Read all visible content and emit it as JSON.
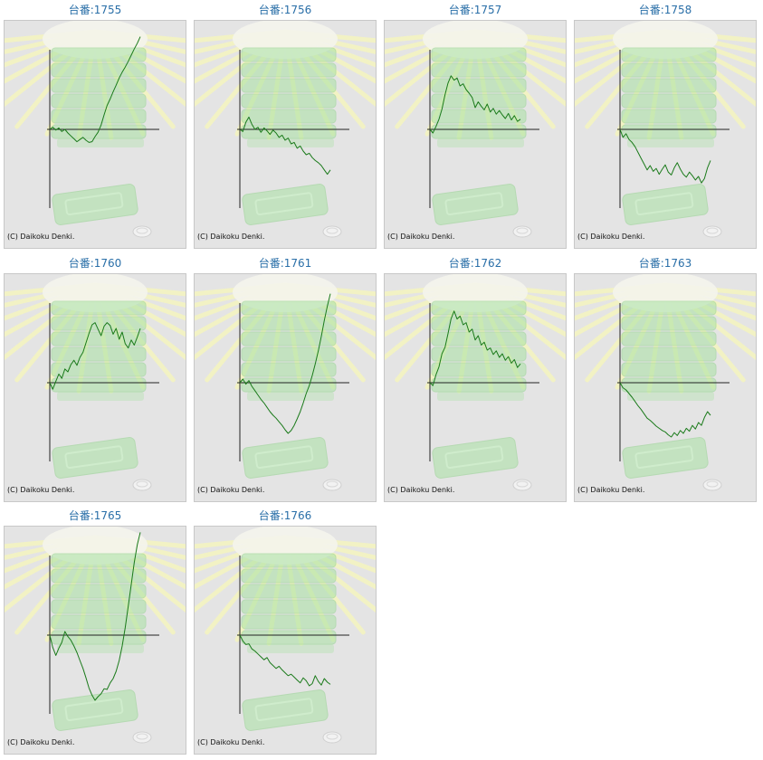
{
  "colors": {
    "title": "#2a6fa8",
    "line": "#1a7a1a",
    "axis": "#222222",
    "panel_bg": "#e4e4e4",
    "panel_border": "#c8c8c8",
    "art_green": "#a9e2a4",
    "art_rays": "#f2f2c4"
  },
  "copyright": "(C) Daikoku Denki.",
  "chart_data": [
    {
      "type": "line",
      "title": "台番:1755",
      "x": [
        0,
        1,
        2,
        3,
        4,
        5,
        6,
        7,
        8,
        9,
        10,
        11,
        12,
        13,
        14,
        15,
        16,
        17,
        18,
        19,
        20,
        21,
        22,
        23,
        24,
        25,
        26,
        27,
        28,
        29,
        30
      ],
      "values": [
        0,
        6,
        -2,
        4,
        -6,
        0,
        -10,
        -18,
        -26,
        -34,
        -28,
        -22,
        -30,
        -36,
        -34,
        -20,
        -8,
        12,
        40,
        66,
        84,
        104,
        122,
        142,
        158,
        172,
        188,
        205,
        222,
        238,
        256
      ]
    },
    {
      "type": "line",
      "title": "台番:1756",
      "x": [
        0,
        1,
        2,
        3,
        4,
        5,
        6,
        7,
        8,
        9,
        10,
        11,
        12,
        13,
        14,
        15,
        16,
        17,
        18,
        19,
        20,
        21,
        22,
        23,
        24,
        25,
        26,
        27,
        28,
        29,
        30
      ],
      "values": [
        0,
        -6,
        20,
        34,
        14,
        0,
        6,
        -8,
        4,
        -4,
        -14,
        -2,
        -10,
        -22,
        -16,
        -30,
        -24,
        -40,
        -36,
        -52,
        -46,
        -60,
        -70,
        -66,
        -78,
        -86,
        -92,
        -100,
        -112,
        -124,
        -112
      ]
    },
    {
      "type": "line",
      "title": "台番:1757",
      "x": [
        0,
        1,
        2,
        3,
        4,
        5,
        6,
        7,
        8,
        9,
        10,
        11,
        12,
        13,
        14,
        15,
        16,
        17,
        18,
        19,
        20,
        21,
        22,
        23,
        24,
        25,
        26,
        27,
        28,
        29,
        30
      ],
      "values": [
        0,
        -10,
        8,
        28,
        56,
        96,
        128,
        148,
        136,
        142,
        120,
        126,
        110,
        100,
        88,
        60,
        76,
        64,
        54,
        70,
        48,
        58,
        42,
        52,
        40,
        30,
        44,
        26,
        38,
        22,
        28
      ]
    },
    {
      "type": "line",
      "title": "台番:1758",
      "x": [
        0,
        1,
        2,
        3,
        4,
        5,
        6,
        7,
        8,
        9,
        10,
        11,
        12,
        13,
        14,
        15,
        16,
        17,
        18,
        19,
        20,
        21,
        22,
        23,
        24,
        25,
        26,
        27,
        28,
        29,
        30
      ],
      "values": [
        0,
        -22,
        -12,
        -28,
        -36,
        -48,
        -64,
        -80,
        -96,
        -112,
        -100,
        -116,
        -108,
        -124,
        -110,
        -98,
        -118,
        -126,
        -106,
        -92,
        -110,
        -124,
        -132,
        -118,
        -128,
        -140,
        -130,
        -148,
        -136,
        -106,
        -86
      ]
    },
    {
      "type": "line",
      "title": "台番:1760",
      "x": [
        0,
        1,
        2,
        3,
        4,
        5,
        6,
        7,
        8,
        9,
        10,
        11,
        12,
        13,
        14,
        15,
        16,
        17,
        18,
        19,
        20,
        21,
        22,
        23,
        24,
        25,
        26,
        27,
        28,
        29,
        30
      ],
      "values": [
        0,
        -18,
        4,
        24,
        12,
        38,
        30,
        50,
        62,
        48,
        70,
        84,
        110,
        136,
        160,
        166,
        148,
        130,
        156,
        166,
        158,
        134,
        150,
        120,
        140,
        108,
        96,
        118,
        104,
        126,
        150
      ]
    },
    {
      "type": "line",
      "title": "台番:1761",
      "x": [
        0,
        1,
        2,
        3,
        4,
        5,
        6,
        7,
        8,
        9,
        10,
        11,
        12,
        13,
        14,
        15,
        16,
        17,
        18,
        19,
        20,
        21,
        22,
        23,
        24,
        25,
        26,
        27,
        28,
        29,
        30
      ],
      "values": [
        0,
        10,
        -4,
        6,
        -10,
        -22,
        -34,
        -46,
        -56,
        -68,
        -80,
        -90,
        -98,
        -108,
        -118,
        -130,
        -140,
        -132,
        -118,
        -100,
        -80,
        -56,
        -30,
        -8,
        20,
        52,
        88,
        128,
        172,
        212,
        246
      ]
    },
    {
      "type": "line",
      "title": "台番:1762",
      "x": [
        0,
        1,
        2,
        3,
        4,
        5,
        6,
        7,
        8,
        9,
        10,
        11,
        12,
        13,
        14,
        15,
        16,
        17,
        18,
        19,
        20,
        21,
        22,
        23,
        24,
        25,
        26,
        27,
        28,
        29,
        30
      ],
      "values": [
        0,
        -8,
        22,
        44,
        80,
        98,
        136,
        176,
        198,
        176,
        184,
        160,
        166,
        140,
        148,
        118,
        130,
        104,
        112,
        90,
        96,
        78,
        88,
        70,
        80,
        62,
        72,
        54,
        64,
        42,
        52
      ]
    },
    {
      "type": "line",
      "title": "台番:1763",
      "x": [
        0,
        1,
        2,
        3,
        4,
        5,
        6,
        7,
        8,
        9,
        10,
        11,
        12,
        13,
        14,
        15,
        16,
        17,
        18,
        19,
        20,
        21,
        22,
        23,
        24,
        25,
        26,
        27,
        28,
        29,
        30
      ],
      "values": [
        0,
        -14,
        -20,
        -30,
        -40,
        -52,
        -64,
        -74,
        -86,
        -98,
        -104,
        -112,
        -120,
        -126,
        -132,
        -136,
        -144,
        -150,
        -138,
        -146,
        -132,
        -140,
        -126,
        -134,
        -118,
        -128,
        -110,
        -118,
        -96,
        -80,
        -90
      ]
    },
    {
      "type": "line",
      "title": "台番:1765",
      "x": [
        0,
        1,
        2,
        3,
        4,
        5,
        6,
        7,
        8,
        9,
        10,
        11,
        12,
        13,
        14,
        15,
        16,
        17,
        18,
        19,
        20,
        21,
        22,
        23,
        24,
        25,
        26,
        27,
        28,
        29,
        30
      ],
      "values": [
        0,
        -34,
        -56,
        -36,
        -20,
        10,
        -4,
        -14,
        -30,
        -48,
        -70,
        -92,
        -118,
        -146,
        -166,
        -180,
        -170,
        -162,
        -148,
        -150,
        -132,
        -120,
        -100,
        -70,
        -30,
        20,
        80,
        140,
        200,
        250,
        284
      ]
    },
    {
      "type": "line",
      "title": "台番:1766",
      "x": [
        0,
        1,
        2,
        3,
        4,
        5,
        6,
        7,
        8,
        9,
        10,
        11,
        12,
        13,
        14,
        15,
        16,
        17,
        18,
        19,
        20,
        21,
        22,
        23,
        24,
        25,
        26,
        27,
        28,
        29,
        30
      ],
      "values": [
        0,
        -16,
        -26,
        -24,
        -38,
        -44,
        -52,
        -60,
        -68,
        -62,
        -76,
        -84,
        -92,
        -86,
        -96,
        -104,
        -112,
        -108,
        -116,
        -124,
        -132,
        -118,
        -126,
        -140,
        -134,
        -112,
        -128,
        -138,
        -120,
        -130,
        -136
      ]
    }
  ]
}
